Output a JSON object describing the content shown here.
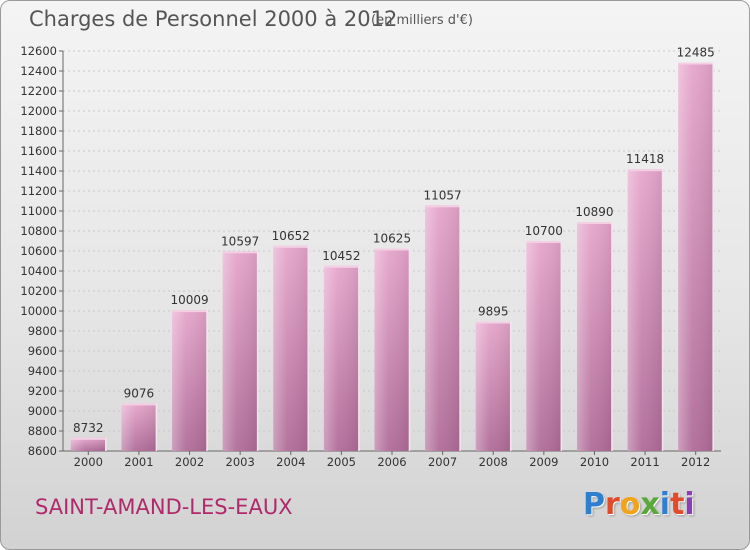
{
  "header": {
    "title": "Charges de Personnel 2000 à 2012",
    "unit": "(en milliers d'€)"
  },
  "footer": {
    "city": "SAINT-AMAND-LES-EAUX",
    "logo_text": "Proxiti",
    "logo_colors": [
      "#2f7fd0",
      "#e04b2b",
      "#f2a31b",
      "#5aa83a",
      "#2f7fd0",
      "#e04b2b",
      "#8a3fb5"
    ]
  },
  "chart_data": {
    "type": "bar",
    "categories": [
      "2000",
      "2001",
      "2002",
      "2003",
      "2004",
      "2005",
      "2006",
      "2007",
      "2008",
      "2009",
      "2010",
      "2011",
      "2012"
    ],
    "values": [
      8732,
      9076,
      10009,
      10597,
      10652,
      10452,
      10625,
      11057,
      9895,
      10700,
      10890,
      11418,
      12485
    ],
    "ylim": [
      8600,
      12600
    ],
    "yticks": [
      8600,
      8800,
      9000,
      9200,
      9400,
      9600,
      9800,
      10000,
      10200,
      10400,
      10600,
      10800,
      11000,
      11200,
      11400,
      11600,
      11800,
      12000,
      12200,
      12400,
      12600
    ],
    "bar_color": "#c77aab",
    "grid": true
  }
}
